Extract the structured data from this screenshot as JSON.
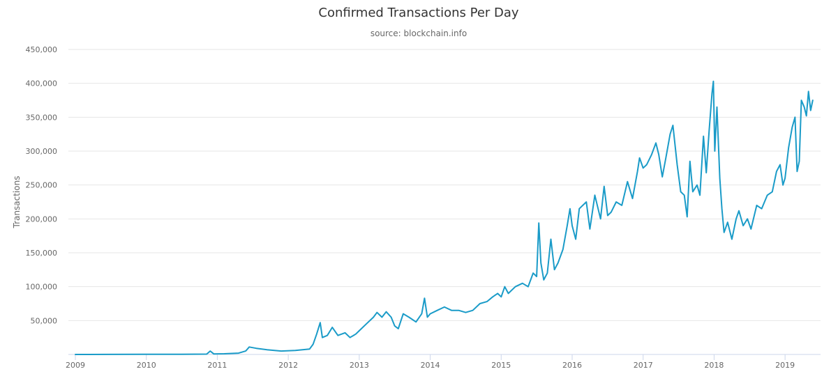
{
  "chart_data": {
    "type": "line",
    "title": "Confirmed Transactions Per Day",
    "subtitle": "source: blockchain.info",
    "xlabel": "",
    "ylabel": "Transactions",
    "xlim": [
      2009.0,
      2019.5
    ],
    "ylim": [
      0,
      450000
    ],
    "grid": true,
    "legend": "none",
    "color": "#1a9bc8",
    "x_ticks": [
      {
        "value": 2009,
        "label": "2009"
      },
      {
        "value": 2010,
        "label": "2010"
      },
      {
        "value": 2011,
        "label": "2011"
      },
      {
        "value": 2012,
        "label": "2012"
      },
      {
        "value": 2013,
        "label": "2013"
      },
      {
        "value": 2014,
        "label": "2014"
      },
      {
        "value": 2015,
        "label": "2015"
      },
      {
        "value": 2016,
        "label": "2016"
      },
      {
        "value": 2017,
        "label": "2017"
      },
      {
        "value": 2018,
        "label": "2018"
      },
      {
        "value": 2019,
        "label": "2019"
      }
    ],
    "y_ticks": [
      {
        "value": 50000,
        "label": "50,000"
      },
      {
        "value": 100000,
        "label": "100,000"
      },
      {
        "value": 150000,
        "label": "150,000"
      },
      {
        "value": 200000,
        "label": "200,000"
      },
      {
        "value": 250000,
        "label": "250,000"
      },
      {
        "value": 300000,
        "label": "300,000"
      },
      {
        "value": 350000,
        "label": "350,000"
      },
      {
        "value": 400000,
        "label": "400,000"
      },
      {
        "value": 450000,
        "label": "450,000"
      }
    ],
    "series": [
      {
        "name": "Confirmed Transactions Per Day",
        "points": [
          [
            2009.0,
            0
          ],
          [
            2009.5,
            100
          ],
          [
            2010.0,
            200
          ],
          [
            2010.5,
            300
          ],
          [
            2010.85,
            500
          ],
          [
            2010.9,
            5000
          ],
          [
            2010.95,
            800
          ],
          [
            2011.1,
            1000
          ],
          [
            2011.3,
            2000
          ],
          [
            2011.4,
            5000
          ],
          [
            2011.45,
            11000
          ],
          [
            2011.55,
            9000
          ],
          [
            2011.7,
            7000
          ],
          [
            2011.9,
            5000
          ],
          [
            2012.1,
            6000
          ],
          [
            2012.2,
            7000
          ],
          [
            2012.3,
            8000
          ],
          [
            2012.35,
            15000
          ],
          [
            2012.4,
            30000
          ],
          [
            2012.45,
            47000
          ],
          [
            2012.48,
            25000
          ],
          [
            2012.55,
            28000
          ],
          [
            2012.62,
            40000
          ],
          [
            2012.7,
            28000
          ],
          [
            2012.8,
            32000
          ],
          [
            2012.87,
            25000
          ],
          [
            2012.95,
            30000
          ],
          [
            2013.0,
            35000
          ],
          [
            2013.1,
            45000
          ],
          [
            2013.2,
            55000
          ],
          [
            2013.25,
            62000
          ],
          [
            2013.32,
            55000
          ],
          [
            2013.38,
            63000
          ],
          [
            2013.45,
            55000
          ],
          [
            2013.5,
            42000
          ],
          [
            2013.55,
            38000
          ],
          [
            2013.62,
            60000
          ],
          [
            2013.7,
            55000
          ],
          [
            2013.8,
            48000
          ],
          [
            2013.88,
            60000
          ],
          [
            2013.92,
            83000
          ],
          [
            2013.96,
            55000
          ],
          [
            2014.0,
            60000
          ],
          [
            2014.1,
            65000
          ],
          [
            2014.2,
            70000
          ],
          [
            2014.3,
            65000
          ],
          [
            2014.4,
            65000
          ],
          [
            2014.5,
            62000
          ],
          [
            2014.6,
            65000
          ],
          [
            2014.7,
            75000
          ],
          [
            2014.8,
            78000
          ],
          [
            2014.88,
            85000
          ],
          [
            2014.95,
            90000
          ],
          [
            2015.0,
            85000
          ],
          [
            2015.05,
            100000
          ],
          [
            2015.1,
            90000
          ],
          [
            2015.2,
            100000
          ],
          [
            2015.3,
            105000
          ],
          [
            2015.38,
            100000
          ],
          [
            2015.45,
            120000
          ],
          [
            2015.5,
            115000
          ],
          [
            2015.53,
            194000
          ],
          [
            2015.56,
            135000
          ],
          [
            2015.6,
            110000
          ],
          [
            2015.65,
            120000
          ],
          [
            2015.7,
            170000
          ],
          [
            2015.75,
            125000
          ],
          [
            2015.8,
            135000
          ],
          [
            2015.87,
            155000
          ],
          [
            2015.93,
            190000
          ],
          [
            2015.97,
            215000
          ],
          [
            2016.0,
            190000
          ],
          [
            2016.05,
            170000
          ],
          [
            2016.1,
            215000
          ],
          [
            2016.2,
            225000
          ],
          [
            2016.25,
            185000
          ],
          [
            2016.32,
            235000
          ],
          [
            2016.4,
            200000
          ],
          [
            2016.45,
            248000
          ],
          [
            2016.5,
            205000
          ],
          [
            2016.55,
            210000
          ],
          [
            2016.62,
            225000
          ],
          [
            2016.7,
            220000
          ],
          [
            2016.78,
            255000
          ],
          [
            2016.85,
            230000
          ],
          [
            2016.92,
            270000
          ],
          [
            2016.95,
            290000
          ],
          [
            2017.0,
            275000
          ],
          [
            2017.05,
            280000
          ],
          [
            2017.12,
            295000
          ],
          [
            2017.18,
            312000
          ],
          [
            2017.22,
            295000
          ],
          [
            2017.27,
            262000
          ],
          [
            2017.32,
            290000
          ],
          [
            2017.38,
            325000
          ],
          [
            2017.42,
            338000
          ],
          [
            2017.48,
            280000
          ],
          [
            2017.53,
            240000
          ],
          [
            2017.58,
            235000
          ],
          [
            2017.62,
            203000
          ],
          [
            2017.66,
            285000
          ],
          [
            2017.7,
            240000
          ],
          [
            2017.76,
            250000
          ],
          [
            2017.8,
            235000
          ],
          [
            2017.85,
            322000
          ],
          [
            2017.89,
            268000
          ],
          [
            2017.93,
            330000
          ],
          [
            2017.97,
            385000
          ],
          [
            2017.99,
            403000
          ],
          [
            2018.01,
            300000
          ],
          [
            2018.04,
            365000
          ],
          [
            2018.08,
            260000
          ],
          [
            2018.11,
            215000
          ],
          [
            2018.14,
            180000
          ],
          [
            2018.19,
            195000
          ],
          [
            2018.25,
            170000
          ],
          [
            2018.31,
            200000
          ],
          [
            2018.35,
            212000
          ],
          [
            2018.41,
            190000
          ],
          [
            2018.47,
            200000
          ],
          [
            2018.52,
            185000
          ],
          [
            2018.6,
            220000
          ],
          [
            2018.67,
            215000
          ],
          [
            2018.75,
            235000
          ],
          [
            2018.82,
            240000
          ],
          [
            2018.88,
            270000
          ],
          [
            2018.93,
            280000
          ],
          [
            2018.97,
            250000
          ],
          [
            2019.0,
            260000
          ],
          [
            2019.05,
            305000
          ],
          [
            2019.1,
            335000
          ],
          [
            2019.14,
            350000
          ],
          [
            2019.17,
            270000
          ],
          [
            2019.2,
            285000
          ],
          [
            2019.23,
            375000
          ],
          [
            2019.27,
            365000
          ],
          [
            2019.3,
            352000
          ],
          [
            2019.33,
            388000
          ],
          [
            2019.36,
            360000
          ],
          [
            2019.39,
            375000
          ]
        ]
      }
    ]
  }
}
